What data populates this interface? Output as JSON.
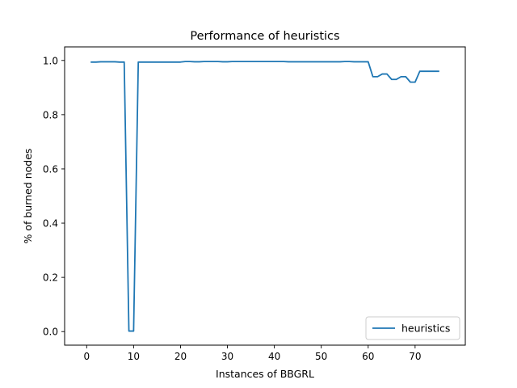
{
  "chart_data": {
    "type": "line",
    "title": "Performance of heuristics",
    "xlabel": "Instances of BBGRL",
    "ylabel": "% of burned nodes",
    "xlim": [
      -4.7,
      80.7
    ],
    "ylim": [
      -0.05,
      1.05
    ],
    "xticks": [
      0,
      10,
      20,
      30,
      40,
      50,
      60,
      70
    ],
    "yticks": [
      0.0,
      0.2,
      0.4,
      0.6,
      0.8,
      1.0
    ],
    "ytick_labels": [
      "0.0",
      "0.2",
      "0.4",
      "0.6",
      "0.8",
      "1.0"
    ],
    "grid": false,
    "legend_position": "bottom-right",
    "series": [
      {
        "name": "heuristics",
        "color": "#1f77b4",
        "x": [
          1,
          2,
          3,
          4,
          5,
          6,
          7,
          8,
          9,
          10,
          11,
          12,
          13,
          14,
          15,
          16,
          17,
          18,
          19,
          20,
          21,
          22,
          23,
          24,
          25,
          26,
          27,
          28,
          29,
          30,
          31,
          32,
          33,
          34,
          35,
          36,
          37,
          38,
          39,
          40,
          41,
          42,
          43,
          44,
          45,
          46,
          47,
          48,
          49,
          50,
          51,
          52,
          53,
          54,
          55,
          56,
          57,
          58,
          59,
          60,
          61,
          62,
          63,
          64,
          65,
          66,
          67,
          68,
          69,
          70,
          71,
          72,
          73,
          74,
          75
        ],
        "y": [
          0.994,
          0.994,
          0.995,
          0.995,
          0.995,
          0.995,
          0.994,
          0.994,
          0.002,
          0.002,
          0.994,
          0.994,
          0.994,
          0.994,
          0.994,
          0.994,
          0.994,
          0.994,
          0.994,
          0.994,
          0.996,
          0.996,
          0.995,
          0.995,
          0.996,
          0.996,
          0.996,
          0.996,
          0.995,
          0.995,
          0.996,
          0.996,
          0.996,
          0.996,
          0.996,
          0.996,
          0.996,
          0.996,
          0.996,
          0.996,
          0.996,
          0.996,
          0.995,
          0.995,
          0.995,
          0.995,
          0.995,
          0.995,
          0.995,
          0.995,
          0.995,
          0.995,
          0.995,
          0.995,
          0.996,
          0.996,
          0.995,
          0.995,
          0.995,
          0.995,
          0.94,
          0.94,
          0.95,
          0.95,
          0.93,
          0.93,
          0.94,
          0.94,
          0.92,
          0.92,
          0.96,
          0.96,
          0.96,
          0.96,
          0.96
        ]
      }
    ]
  }
}
